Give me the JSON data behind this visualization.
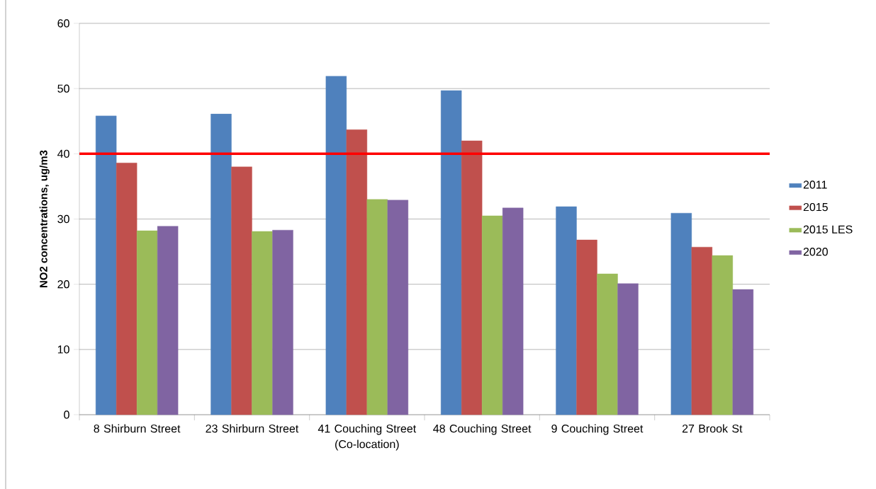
{
  "chart_data": {
    "type": "bar",
    "ylabel": "NO2 concentrations, ug/m3",
    "categories": [
      "8 Shirburn Street",
      "23 Shirburn Street",
      "41 Couching Street (Co-location)",
      "48 Couching Street",
      "9 Couching Street",
      "27 Brook St"
    ],
    "series": [
      {
        "name": "2011",
        "color": "#4f81bd",
        "values": [
          45.8,
          46.1,
          51.9,
          49.7,
          31.9,
          30.9
        ]
      },
      {
        "name": "2015",
        "color": "#c0504d",
        "values": [
          38.6,
          38.0,
          43.7,
          42.0,
          26.8,
          25.7
        ]
      },
      {
        "name": "2015 LES",
        "color": "#9bbb59",
        "values": [
          28.2,
          28.1,
          33.0,
          30.5,
          21.6,
          24.4
        ]
      },
      {
        "name": "2020",
        "color": "#8064a2",
        "values": [
          28.9,
          28.3,
          32.9,
          31.7,
          20.1,
          19.2
        ]
      }
    ],
    "ylim": [
      0,
      60
    ],
    "yticks": [
      0,
      10,
      20,
      30,
      40,
      50,
      60
    ],
    "grid": "y",
    "legend": "right",
    "ref_lines": [
      {
        "axis": "y",
        "value": 40,
        "color": "#ff0000"
      }
    ]
  }
}
